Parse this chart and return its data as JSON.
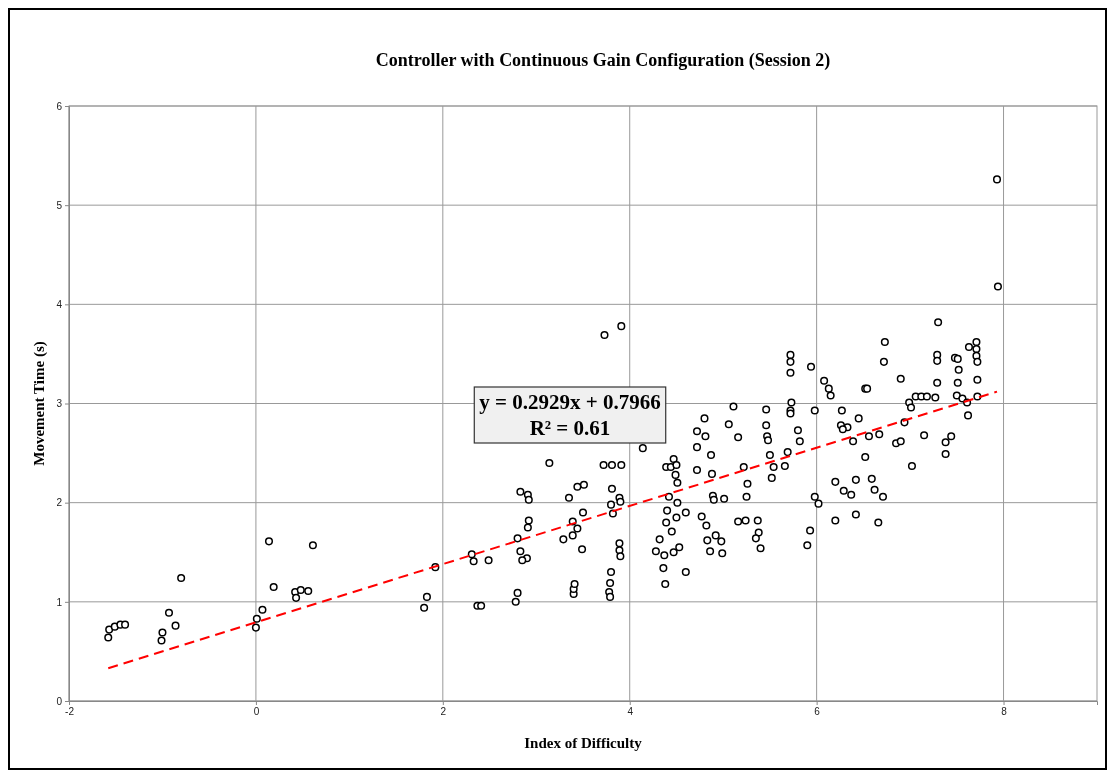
{
  "chart_data": {
    "type": "scatter",
    "title": "Controller with Continuous Gain Configuration (Session 2)",
    "xlabel": "Index of Difficulty",
    "ylabel": "Movement Time (s)",
    "xlim": [
      -2,
      9
    ],
    "xticks": [
      -2,
      0,
      2,
      4,
      6,
      8
    ],
    "ylim": [
      0,
      6
    ],
    "yticks": [
      0,
      1,
      2,
      3,
      4,
      5,
      6
    ],
    "grid": true,
    "marker": "circle",
    "annotations": [
      "y = 0.2929x + 0.7966",
      "R² = 0.61"
    ],
    "series": [
      {
        "color": "#000000",
        "x": [
          -1.58,
          -1.57,
          -1.51,
          -1.45,
          -1.4,
          -1.01,
          -1.0,
          -0.93,
          -0.86,
          -0.8,
          0.0,
          0.01,
          0.07,
          0.14,
          0.19,
          0.42,
          0.43,
          0.48,
          0.56,
          0.61,
          1.8,
          1.83,
          1.92,
          2.31,
          2.33,
          2.37,
          2.41,
          2.49,
          2.78,
          2.8,
          2.8,
          2.83,
          2.91,
          2.92,
          2.92,
          2.91,
          2.9,
          2.85,
          2.83,
          3.14,
          3.29,
          3.35,
          3.4,
          3.4,
          3.41,
          3.39,
          3.39,
          3.44,
          3.51,
          3.5,
          3.49,
          3.44,
          3.72,
          3.73,
          3.78,
          3.79,
          3.8,
          3.79,
          3.81,
          3.8,
          3.82,
          3.81,
          3.91,
          3.91,
          3.89,
          3.9,
          3.89,
          3.89,
          3.9,
          4.14,
          4.28,
          4.32,
          4.36,
          4.38,
          4.37,
          4.39,
          4.4,
          4.42,
          4.39,
          4.44,
          4.47,
          4.5,
          4.49,
          4.51,
          4.51,
          4.5,
          4.45,
          4.47,
          4.53,
          4.6,
          4.6,
          4.72,
          4.72,
          4.72,
          4.77,
          4.8,
          4.81,
          4.87,
          4.88,
          4.89,
          4.9,
          4.82,
          4.83,
          4.86,
          4.92,
          4.98,
          4.99,
          5.01,
          5.06,
          5.11,
          5.16,
          5.22,
          5.26,
          5.25,
          5.16,
          5.24,
          5.37,
          5.4,
          5.38,
          5.35,
          5.46,
          5.46,
          5.47,
          5.48,
          5.5,
          5.52,
          5.54,
          5.66,
          5.69,
          5.72,
          5.72,
          5.72,
          5.73,
          5.72,
          5.72,
          5.8,
          5.82,
          5.94,
          5.98,
          5.98,
          6.02,
          5.93,
          5.9,
          6.08,
          6.13,
          6.15,
          6.27,
          6.26,
          6.33,
          6.28,
          6.39,
          6.45,
          6.52,
          6.54,
          6.52,
          6.2,
          6.2,
          6.29,
          6.37,
          6.42,
          6.42,
          6.56,
          6.67,
          6.71,
          6.66,
          6.62,
          6.59,
          6.73,
          6.72,
          6.85,
          6.9,
          6.9,
          6.94,
          6.99,
          7.06,
          7.15,
          7.01,
          7.02,
          7.12,
          7.18,
          7.27,
          7.3,
          7.29,
          7.29,
          7.29,
          7.38,
          7.38,
          7.48,
          7.51,
          7.52,
          7.51,
          7.5,
          7.56,
          7.62,
          7.63,
          7.71,
          7.71,
          7.71,
          7.72,
          7.72,
          7.72,
          7.93,
          7.94,
          7.61,
          7.44
        ],
        "values": [
          0.64,
          0.72,
          0.75,
          0.77,
          0.77,
          0.61,
          0.69,
          0.89,
          0.76,
          1.24,
          0.74,
          0.83,
          0.92,
          1.61,
          1.15,
          1.1,
          1.04,
          1.12,
          1.11,
          1.57,
          0.94,
          1.05,
          1.35,
          1.48,
          1.41,
          0.96,
          0.96,
          1.42,
          1.0,
          1.09,
          1.64,
          2.11,
          2.08,
          2.03,
          1.82,
          1.75,
          1.44,
          1.42,
          1.51,
          2.4,
          1.63,
          2.05,
          1.08,
          1.13,
          1.18,
          1.81,
          1.67,
          2.16,
          2.18,
          1.9,
          1.53,
          1.74,
          2.38,
          3.69,
          1.1,
          1.19,
          1.3,
          1.05,
          2.14,
          1.98,
          1.89,
          2.38,
          2.38,
          3.78,
          2.05,
          2.01,
          1.59,
          1.52,
          1.46,
          2.55,
          1.51,
          1.63,
          1.34,
          1.18,
          1.47,
          1.8,
          1.92,
          2.06,
          2.36,
          2.36,
          2.44,
          2.38,
          2.28,
          2.2,
          2.0,
          1.85,
          1.71,
          1.5,
          1.55,
          1.9,
          1.3,
          2.72,
          2.56,
          2.33,
          1.86,
          2.85,
          2.67,
          2.48,
          2.29,
          2.07,
          2.03,
          1.77,
          1.62,
          1.51,
          1.67,
          1.61,
          1.49,
          2.04,
          2.79,
          2.97,
          2.66,
          2.36,
          2.19,
          2.06,
          1.81,
          1.82,
          1.82,
          1.54,
          1.7,
          1.64,
          2.94,
          2.78,
          2.67,
          2.63,
          2.48,
          2.25,
          2.36,
          2.37,
          2.51,
          3.49,
          3.42,
          3.31,
          3.01,
          2.93,
          2.9,
          2.73,
          2.62,
          3.37,
          2.93,
          2.06,
          1.99,
          1.72,
          1.57,
          3.23,
          3.15,
          3.08,
          2.93,
          2.78,
          2.76,
          2.74,
          2.62,
          2.85,
          3.15,
          3.15,
          2.46,
          2.21,
          1.82,
          2.12,
          2.08,
          2.23,
          1.88,
          2.67,
          2.69,
          2.06,
          1.8,
          2.13,
          2.24,
          3.62,
          3.42,
          2.6,
          2.62,
          3.25,
          2.81,
          3.01,
          3.07,
          2.68,
          2.96,
          2.37,
          3.07,
          3.07,
          3.06,
          3.82,
          3.49,
          3.43,
          3.21,
          2.61,
          2.49,
          3.46,
          3.45,
          3.34,
          3.21,
          3.08,
          3.05,
          2.88,
          3.57,
          3.62,
          3.55,
          3.48,
          3.42,
          3.24,
          3.07,
          5.26,
          4.18,
          3.01,
          2.67
        ]
      },
      {
        "type": "line",
        "color": "#ff0000",
        "line_style": "dashed",
        "marker": "none",
        "x": [
          -1.58,
          7.93
        ],
        "values": [
          0.33,
          3.12
        ]
      }
    ]
  }
}
